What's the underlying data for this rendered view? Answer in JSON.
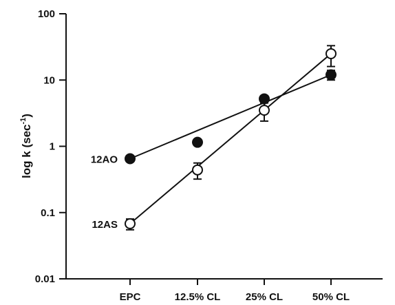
{
  "chart_data": {
    "type": "scatter",
    "categories": [
      "EPC",
      "12.5% CL",
      "25% CL",
      "50% CL"
    ],
    "yscale": "log",
    "ylim": [
      0.01,
      100
    ],
    "yticks": [
      "0.01",
      "0.1",
      "1",
      "10",
      "100"
    ],
    "ylabel": "log k (sec",
    "ylabel_sup": "-1",
    "ylabel_suffix": ")",
    "xlabel": "",
    "title": "",
    "legend": "none",
    "grid": false,
    "series": [
      {
        "name": "12AO",
        "marker": "filled-circle",
        "values": [
          0.65,
          1.15,
          5.2,
          12.0
        ],
        "error_low": [
          null,
          null,
          null,
          10.0
        ],
        "error_high": [
          null,
          null,
          null,
          14.0
        ],
        "fit": [
          0.65,
          12.0
        ]
      },
      {
        "name": "12AS",
        "marker": "open-circle",
        "values": [
          0.068,
          0.44,
          3.5,
          25.0
        ],
        "error_low": [
          0.055,
          0.32,
          2.4,
          16.0
        ],
        "error_high": [
          0.08,
          0.56,
          4.5,
          33.0
        ],
        "fit": [
          0.068,
          25.0
        ]
      }
    ]
  }
}
